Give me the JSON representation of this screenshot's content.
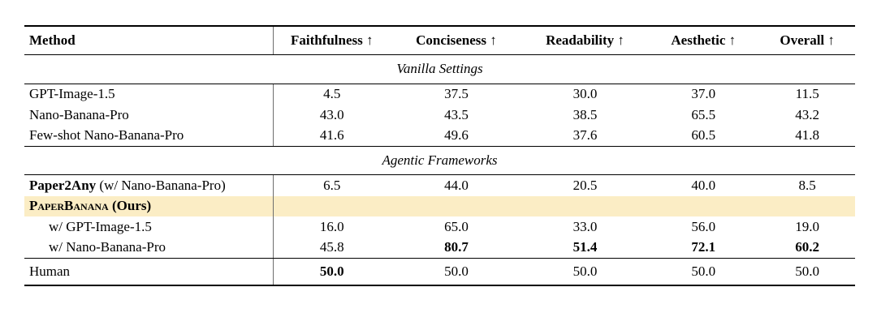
{
  "colors": {
    "highlight": "#FBEDC5",
    "rule": "#000000",
    "divider": "#6e6e6e"
  },
  "table": {
    "headers": [
      "Method",
      "Faithfulness ↑",
      "Conciseness ↑",
      "Readability ↑",
      "Aesthetic ↑",
      "Overall ↑"
    ],
    "sections": [
      "Vanilla Settings",
      "Agentic Frameworks"
    ],
    "rows": {
      "gpt_image": {
        "method": "GPT-Image-1.5",
        "values": [
          "4.5",
          "37.5",
          "30.0",
          "37.0",
          "11.5"
        ]
      },
      "nano_banana": {
        "method": "Nano-Banana-Pro",
        "values": [
          "43.0",
          "43.5",
          "38.5",
          "65.5",
          "43.2"
        ]
      },
      "few_shot": {
        "method": "Few-shot Nano-Banana-Pro",
        "values": [
          "41.6",
          "49.6",
          "37.6",
          "60.5",
          "41.8"
        ]
      },
      "paper2any": {
        "method_bold": "Paper2Any",
        "method_rest": " (w/ Nano-Banana-Pro)",
        "values": [
          "6.5",
          "44.0",
          "20.5",
          "40.0",
          "8.5"
        ]
      },
      "paperbanana": {
        "method_smallcaps": "PaperBanana",
        "method_rest": " (Ours)"
      },
      "pb_gpt": {
        "method": "w/ GPT-Image-1.5",
        "values": [
          "16.0",
          "65.0",
          "33.0",
          "56.0",
          "19.0"
        ]
      },
      "pb_nano": {
        "method": "w/ Nano-Banana-Pro",
        "values": [
          "45.8",
          "80.7",
          "51.4",
          "72.1",
          "60.2"
        ]
      },
      "human": {
        "method": "Human",
        "values": [
          "50.0",
          "50.0",
          "50.0",
          "50.0",
          "50.0"
        ]
      }
    }
  }
}
